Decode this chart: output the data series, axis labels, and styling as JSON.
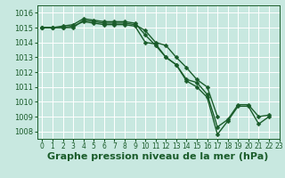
{
  "background_color": "#c8e8e0",
  "grid_color": "#ffffff",
  "line_color": "#1a5c2a",
  "marker_color": "#1a5c2a",
  "title": "Graphe pression niveau de la mer (hPa)",
  "xlim": [
    -0.5,
    23
  ],
  "ylim": [
    1007.5,
    1016.5
  ],
  "yticks": [
    1008,
    1009,
    1010,
    1011,
    1012,
    1013,
    1014,
    1015,
    1016
  ],
  "xticks": [
    0,
    1,
    2,
    3,
    4,
    5,
    6,
    7,
    8,
    9,
    10,
    11,
    12,
    13,
    14,
    15,
    16,
    17,
    18,
    19,
    20,
    21,
    22,
    23
  ],
  "series": [
    [
      1015.0,
      1015.0,
      1015.1,
      1015.2,
      1015.6,
      1015.5,
      1015.4,
      1015.4,
      1015.4,
      1015.3,
      1014.5,
      1013.8,
      1013.0,
      1012.5,
      1011.5,
      1011.3,
      1010.5,
      1008.3,
      1008.8,
      1009.8,
      1009.8,
      1009.0,
      1009.1,
      null
    ],
    [
      1015.0,
      1015.0,
      1015.0,
      1015.0,
      1015.5,
      1015.4,
      1015.3,
      1015.3,
      1015.3,
      1015.2,
      1014.8,
      1014.0,
      1013.8,
      1013.0,
      1012.3,
      1011.5,
      1011.0,
      1009.0,
      null,
      null,
      null,
      null,
      null,
      null
    ],
    [
      1015.0,
      1015.0,
      1015.0,
      1015.1,
      1015.4,
      1015.3,
      1015.2,
      1015.2,
      1015.2,
      1015.1,
      1014.0,
      1013.9,
      1013.0,
      1012.5,
      1011.4,
      1011.0,
      1010.3,
      1007.8,
      1008.7,
      1009.7,
      1009.7,
      1008.5,
      1009.0,
      null
    ]
  ],
  "title_fontsize": 8,
  "tick_fontsize": 6,
  "title_color": "#1a5c2a",
  "tick_color": "#1a5c2a",
  "marker_size": 2.5,
  "line_width": 1.0
}
